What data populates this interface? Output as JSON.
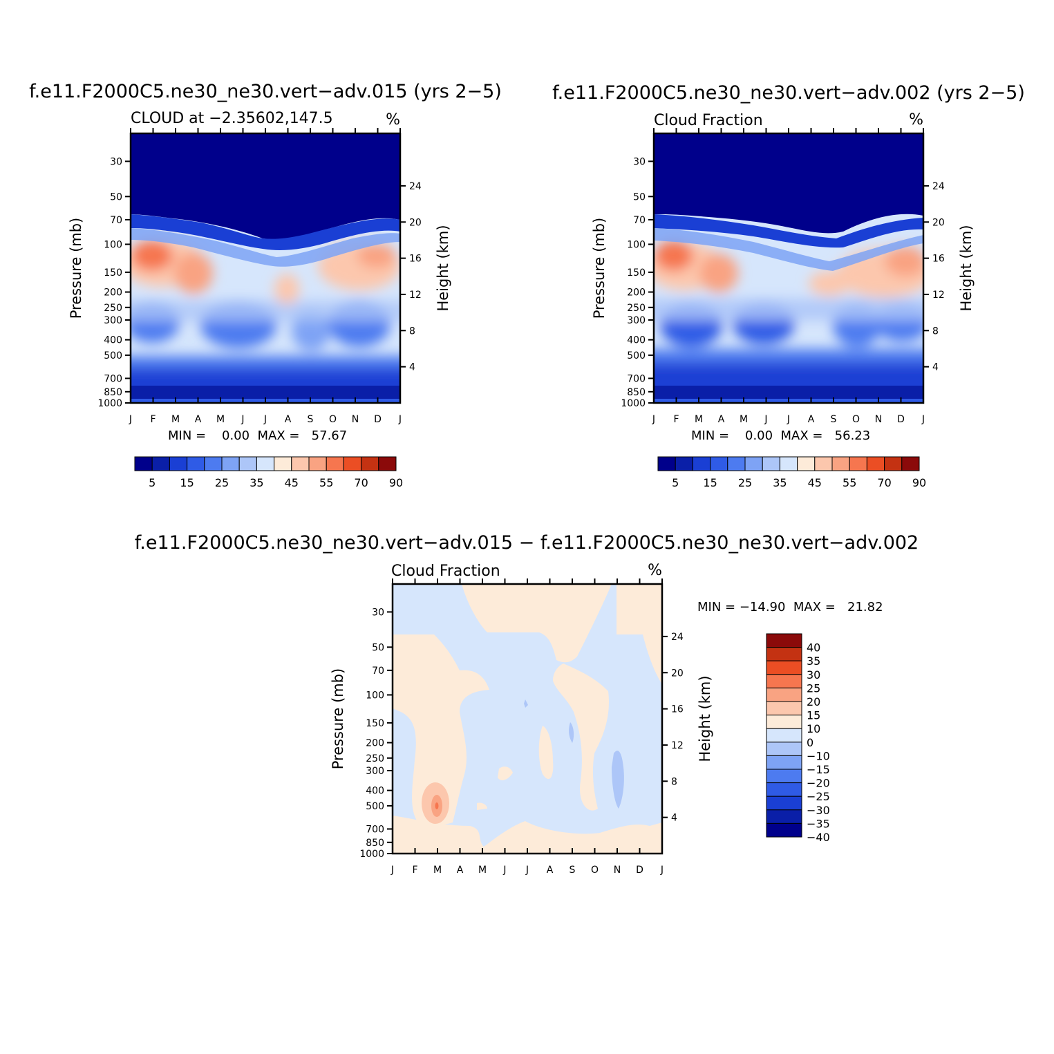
{
  "chart_data": [
    {
      "type": "heatmap",
      "title": "f.e11.F2000C5.ne30_ne30.vert−adv.015 (yrs 2−5)",
      "subtitle": "CLOUD at −2.35602,147.5",
      "units": "%",
      "xlabel": "",
      "ylabel": "Pressure (mb)",
      "y2label": "Height (km)",
      "x_ticks": [
        "J",
        "F",
        "M",
        "A",
        "M",
        "J",
        "J",
        "A",
        "S",
        "O",
        "N",
        "D",
        "J"
      ],
      "y_ticks": [
        "30",
        "50",
        "70",
        "100",
        "150",
        "200",
        "250",
        "300",
        "400",
        "500",
        "700",
        "850",
        "1000"
      ],
      "y2_ticks": [
        "24",
        "20",
        "16",
        "12",
        "8",
        "4"
      ],
      "min_max": "MIN =    0.00  MAX =   57.67",
      "colorbar_labels": [
        "5",
        "15",
        "25",
        "35",
        "45",
        "55",
        "70",
        "90"
      ],
      "features": [
        {
          "level_mb": 130,
          "month": "Feb",
          "value": 55
        },
        {
          "level_mb": 150,
          "month": "Apr",
          "value": 50
        },
        {
          "level_mb": 150,
          "month": "Dec",
          "value": 45
        },
        {
          "level_mb": 350,
          "month": "Jun",
          "value": 10
        },
        {
          "level_mb": 330,
          "month": "Nov",
          "value": 8
        }
      ]
    },
    {
      "type": "heatmap",
      "title": "f.e11.F2000C5.ne30_ne30.vert−adv.002 (yrs 2−5)",
      "subtitle": "Cloud Fraction",
      "units": "%",
      "xlabel": "",
      "ylabel": "Pressure (mb)",
      "y2label": "Height (km)",
      "x_ticks": [
        "J",
        "F",
        "M",
        "A",
        "M",
        "J",
        "J",
        "A",
        "S",
        "O",
        "N",
        "D",
        "J"
      ],
      "y_ticks": [
        "30",
        "50",
        "70",
        "100",
        "150",
        "200",
        "250",
        "300",
        "400",
        "500",
        "700",
        "850",
        "1000"
      ],
      "y2_ticks": [
        "24",
        "20",
        "16",
        "12",
        "8",
        "4"
      ],
      "min_max": "MIN =    0.00  MAX =   56.23",
      "colorbar_labels": [
        "5",
        "15",
        "25",
        "35",
        "45",
        "55",
        "70",
        "90"
      ],
      "features": [
        {
          "level_mb": 130,
          "month": "Feb",
          "value": 55
        },
        {
          "level_mb": 170,
          "month": "Apr",
          "value": 48
        },
        {
          "level_mb": 150,
          "month": "Dec",
          "value": 48
        },
        {
          "level_mb": 330,
          "month": "Mar",
          "value": 10
        },
        {
          "level_mb": 340,
          "month": "Jun",
          "value": 10
        }
      ]
    },
    {
      "type": "heatmap",
      "title": "f.e11.F2000C5.ne30_ne30.vert−adv.015 − f.e11.F2000C5.ne30_ne30.vert−adv.002",
      "subtitle": "Cloud Fraction",
      "units": "%",
      "xlabel": "",
      "ylabel": "Pressure (mb)",
      "y2label": "Height (km)",
      "x_ticks": [
        "J",
        "F",
        "M",
        "A",
        "M",
        "J",
        "J",
        "A",
        "S",
        "O",
        "N",
        "D",
        "J"
      ],
      "y_ticks": [
        "30",
        "50",
        "70",
        "100",
        "150",
        "200",
        "250",
        "300",
        "400",
        "500",
        "700",
        "850",
        "1000"
      ],
      "y2_ticks": [
        "24",
        "20",
        "16",
        "12",
        "8",
        "4"
      ],
      "min_max": "MIN = −14.90  MAX =   21.82",
      "colorbar_labels": [
        "40",
        "35",
        "30",
        "25",
        "20",
        "15",
        "10",
        "0",
        "−10",
        "−15",
        "−20",
        "−25",
        "−30",
        "−35",
        "−40"
      ],
      "features": [
        {
          "level_mb": 520,
          "month": "Mar",
          "value": 20
        },
        {
          "level_mb": 320,
          "month": "Nov",
          "value": -12
        }
      ]
    }
  ],
  "colors": {
    "diverging": [
      "#00008b",
      "#0a1fa8",
      "#1a3fd4",
      "#2f5be6",
      "#4d7bf0",
      "#7ea3f5",
      "#adc6f8",
      "#d6e6fc",
      "#fdebd9",
      "#fcc7ad",
      "#f9a382",
      "#f6764f",
      "#eb4e24",
      "#c43212",
      "#8b0a0a"
    ],
    "background": "#ffffff"
  }
}
